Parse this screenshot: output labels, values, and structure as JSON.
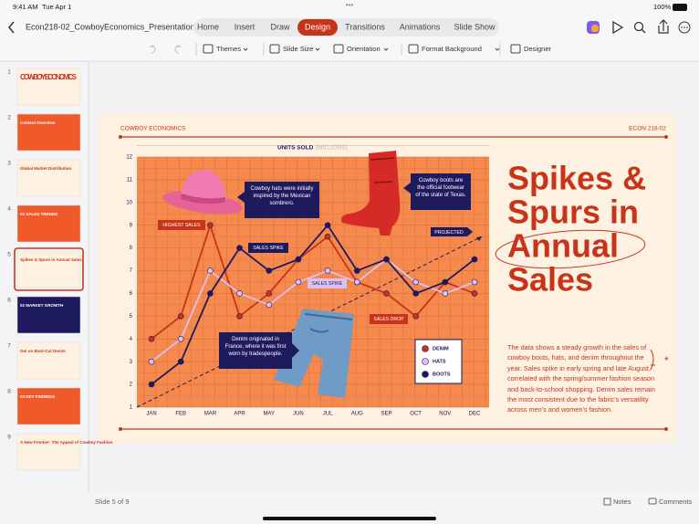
{
  "status_bar": {
    "time": "9:41 AM",
    "date": "Tue Apr 1",
    "battery": "100%"
  },
  "toolbar": {
    "file_name": "Econ218-02_CowboyEconomics_Presentation",
    "tabs": [
      "Home",
      "Insert",
      "Draw",
      "Design",
      "Transitions",
      "Animations",
      "Slide Show"
    ],
    "active_tab": 3
  },
  "ribbon": {
    "buttons": [
      "Themes",
      "Slide Size",
      "Orientation",
      "Format Background",
      "Designer"
    ]
  },
  "slides": [
    {
      "number": "1",
      "title": "COWBOY ECONOMICS"
    },
    {
      "number": "2",
      "title": "Content Overview"
    },
    {
      "number": "3",
      "title": "Global Market Distribution"
    },
    {
      "number": "4",
      "title": "01 SALES TRENDS"
    },
    {
      "number": "5",
      "title": "Spikes & Spurs in Annual Sales"
    },
    {
      "number": "6",
      "title": "02 MARKET GROWTH"
    },
    {
      "number": "7",
      "title": "Get on Boot-Cut Denim"
    },
    {
      "number": "8",
      "title": "03 KEY FINDINGS"
    },
    {
      "number": "9",
      "title": "A New Frontier: The Appeal of Cowboy Fashion"
    }
  ],
  "selected_slide": 4,
  "slide": {
    "header_left": "COWBOY ECONOMICS",
    "header_right": "ECON 218-02",
    "title_lines": [
      "Spikes &",
      "Spurs in",
      "Annual",
      "Sales"
    ],
    "body": "The data shows a steady growth in the sales of cowboy boots, hats, and denim throughout the year. Sales spike in early spring and late August, correlated with the spring/summer fashion season and back-to-school shopping. Denim sales remain the most consistent due to the fabric's versatility across men's and women's fashion."
  },
  "chart_data": {
    "type": "line",
    "title": "UNITS SOLD",
    "subtitle": "(MILLIONS)",
    "categories": [
      "JAN",
      "FEB",
      "MAR",
      "APR",
      "MAY",
      "JUN",
      "JUL",
      "AUG",
      "SEP",
      "OCT",
      "NOV",
      "DEC"
    ],
    "series": [
      {
        "name": "DENIM",
        "color": "#c8341a",
        "values": [
          4,
          5,
          9,
          5,
          6,
          7.5,
          8.5,
          6.5,
          6,
          5,
          6.5,
          6
        ]
      },
      {
        "name": "HATS",
        "color": "#dcc0f2",
        "values": [
          3,
          4,
          7,
          6,
          5.5,
          6.5,
          7,
          6.5,
          7.5,
          6.5,
          6,
          6.5
        ]
      },
      {
        "name": "BOOTS",
        "color": "#1e1a5e",
        "values": [
          2,
          3,
          6,
          8,
          7,
          7.5,
          9,
          7,
          7.5,
          6,
          6.5,
          7.5
        ]
      }
    ],
    "ylim": [
      1,
      12
    ],
    "yticks": [
      1,
      2,
      3,
      4,
      5,
      6,
      7,
      8,
      9,
      10,
      11,
      12
    ],
    "grid": true,
    "trend": {
      "label": "PROJECTED",
      "start": 1,
      "end": 8.5
    },
    "annotations": [
      "HIGHEST SALES",
      "SALES SPIKE",
      "SALES SPIKE",
      "SALES DROP"
    ],
    "callouts": [
      "Cowboy hats were initially inspired by the Mexican sombrero.",
      "Cowboy boots are the official footwear of the state of Texas.",
      "Denim originated in France, where it was first worn by tradespeople."
    ]
  },
  "footer": {
    "slide_indicator": "Slide 5 of 9",
    "notes": "Notes",
    "comments": "Comments"
  }
}
